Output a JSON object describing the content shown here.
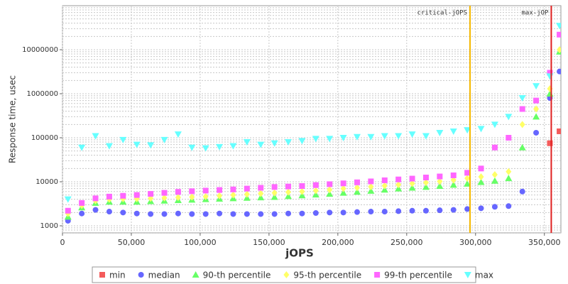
{
  "chart_data": {
    "type": "scatter",
    "xlabel": "jOPS",
    "ylabel": "Response time, usec",
    "xlim": [
      0,
      362000
    ],
    "ylim": [
      690,
      100000000
    ],
    "log_y": true,
    "grid": true,
    "legend": "bottom",
    "xticks": [
      0,
      {
        "value": 50000,
        "label": "50,000"
      },
      {
        "value": 100000,
        "label": "100,000"
      },
      {
        "value": 150000,
        "label": "150,000"
      },
      {
        "value": 200000,
        "label": "200,000"
      },
      {
        "value": 250000,
        "label": "250,000"
      },
      {
        "value": 300000,
        "label": "300,000"
      },
      {
        "value": 350000,
        "label": "350,000"
      }
    ],
    "yticks": [
      1000,
      10000,
      100000,
      1000000,
      10000000
    ],
    "vlines": [
      {
        "label": "critical-jOPS",
        "x": 296000,
        "color": "#f5b800"
      },
      {
        "label": "max-jOP",
        "x": 355000,
        "color": "#e02020"
      }
    ],
    "x": [
      4000,
      14000,
      24000,
      34000,
      44000,
      54000,
      64000,
      74000,
      84000,
      94000,
      104000,
      114000,
      124000,
      134000,
      144000,
      154000,
      164000,
      174000,
      184000,
      194000,
      204000,
      214000,
      224000,
      234000,
      244000,
      254000,
      264000,
      274000,
      284000,
      294000,
      304000,
      314000,
      324000,
      334000,
      344000,
      354000,
      361000
    ],
    "series": [
      {
        "name": "min",
        "color": "#f45b5b",
        "marker": "square",
        "values": [
          null,
          null,
          null,
          null,
          null,
          null,
          null,
          null,
          null,
          null,
          null,
          null,
          null,
          null,
          null,
          null,
          null,
          null,
          null,
          null,
          null,
          null,
          null,
          null,
          null,
          null,
          null,
          null,
          null,
          null,
          null,
          null,
          null,
          null,
          null,
          75000,
          140000
        ]
      },
      {
        "name": "median",
        "color": "#6666ff",
        "marker": "circle",
        "values": [
          1300,
          1900,
          2300,
          2100,
          2000,
          1900,
          1850,
          1850,
          1900,
          1850,
          1850,
          1900,
          1850,
          1850,
          1850,
          1850,
          1900,
          1900,
          1950,
          2000,
          2000,
          2050,
          2100,
          2100,
          2150,
          2200,
          2200,
          2250,
          2300,
          2400,
          2500,
          2700,
          2800,
          6000,
          130000,
          800000,
          3200000
        ]
      },
      {
        "name": "90-th percentile",
        "color": "#66ff66",
        "marker": "triangle",
        "values": [
          1600,
          2600,
          3300,
          3500,
          3500,
          3500,
          3600,
          3700,
          3800,
          3900,
          4000,
          4100,
          4200,
          4300,
          4400,
          4500,
          4700,
          4900,
          5100,
          5300,
          5600,
          5900,
          6200,
          6600,
          7000,
          7300,
          7600,
          8000,
          8500,
          9000,
          9800,
          10500,
          12000,
          60000,
          300000,
          1000000,
          9000000
        ]
      },
      {
        "name": "95-th percentile",
        "color": "#ffff66",
        "marker": "diamond",
        "values": [
          1900,
          2900,
          3700,
          4000,
          4100,
          4100,
          4200,
          4300,
          4400,
          4500,
          4600,
          4800,
          5000,
          5200,
          5400,
          5600,
          5800,
          6000,
          6300,
          6600,
          7000,
          7300,
          7700,
          8100,
          8600,
          9100,
          9600,
          10200,
          11000,
          12000,
          13000,
          14500,
          17000,
          200000,
          450000,
          1300000,
          10000000
        ]
      },
      {
        "name": "99-th percentile",
        "color": "#ff66ff",
        "marker": "square",
        "values": [
          2200,
          3300,
          4200,
          4600,
          4800,
          5000,
          5300,
          5600,
          5900,
          6100,
          6300,
          6500,
          6700,
          7000,
          7300,
          7600,
          7800,
          8000,
          8400,
          8800,
          9200,
          9700,
          10200,
          10800,
          11300,
          11800,
          12500,
          13200,
          14000,
          16000,
          20000,
          60000,
          100000,
          450000,
          700000,
          3000000,
          22000000
        ]
      },
      {
        "name": "max",
        "color": "#66ffff",
        "marker": "triangle-down",
        "values": [
          4000,
          60000,
          110000,
          65000,
          90000,
          70000,
          68000,
          90000,
          120000,
          60000,
          58000,
          62000,
          65000,
          80000,
          70000,
          75000,
          80000,
          85000,
          95000,
          95000,
          100000,
          105000,
          105000,
          110000,
          110000,
          120000,
          110000,
          130000,
          140000,
          150000,
          160000,
          200000,
          300000,
          800000,
          1500000,
          2500000,
          35000000
        ]
      }
    ]
  }
}
